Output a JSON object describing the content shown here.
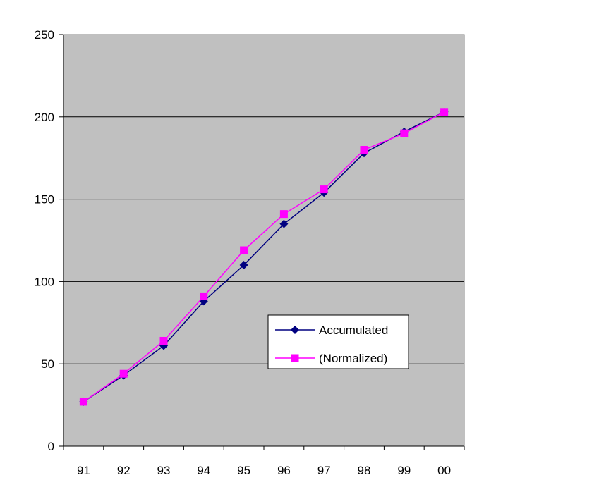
{
  "chart_data": {
    "type": "line",
    "title": "",
    "xlabel": "",
    "ylabel": "",
    "categories": [
      "91",
      "92",
      "93",
      "94",
      "95",
      "96",
      "97",
      "98",
      "99",
      "00"
    ],
    "ylim": [
      0,
      250
    ],
    "yticks": [
      0,
      50,
      100,
      150,
      200,
      250
    ],
    "grid": true,
    "legend_position": "right-middle",
    "plot_background": "#c0c0c0",
    "series": [
      {
        "name": "Accumulated",
        "color": "#000080",
        "marker": "diamond",
        "values": [
          27,
          43,
          61,
          88,
          110,
          135,
          154,
          178,
          191,
          203
        ]
      },
      {
        "name": "(Normalized)",
        "color": "#ff00ff",
        "marker": "square",
        "values": [
          27,
          44,
          64,
          91,
          119,
          141,
          156,
          180,
          190,
          203
        ]
      }
    ]
  }
}
